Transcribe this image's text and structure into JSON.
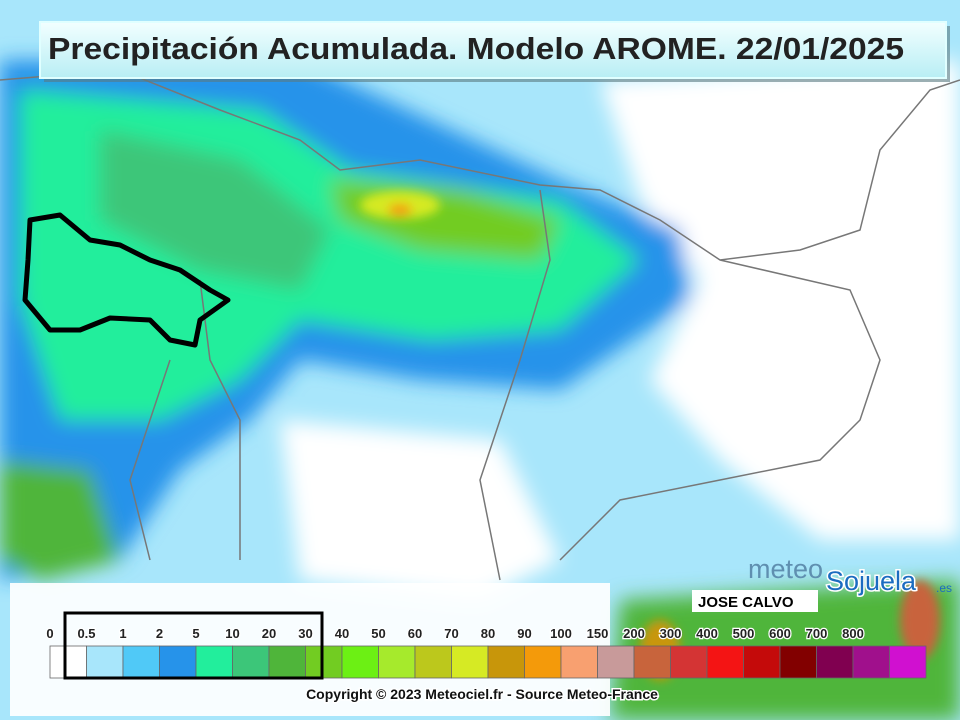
{
  "header": {
    "title": "Precipitación Acumulada. Modelo AROME. 22/01/2025"
  },
  "logo": {
    "meteo": "meteo",
    "name": "Sojuela",
    "suffix": ".es",
    "author": "JOSE CALVO"
  },
  "legend": {
    "labels": [
      0,
      0.5,
      1,
      2,
      5,
      10,
      20,
      30,
      40,
      50,
      60,
      70,
      80,
      90,
      100,
      150,
      200,
      300,
      400,
      500,
      600,
      700,
      800
    ],
    "colors": [
      "#ffffff",
      "#a8e6fb",
      "#50c9f7",
      "#2693ea",
      "#22ee9c",
      "#3cc679",
      "#4fb53a",
      "#72cc22",
      "#6cf014",
      "#a6ea2c",
      "#bcc81c",
      "#d6ea24",
      "#c8960a",
      "#f49a0a",
      "#f8a070",
      "#c89a9a",
      "#c8643c",
      "#d43434",
      "#f41414",
      "#c40a0a",
      "#820000",
      "#800050",
      "#a0108c",
      "#d010d0"
    ],
    "copyright": "Copyright © 2023 Meteociel.fr - Source Meteo-France"
  }
}
